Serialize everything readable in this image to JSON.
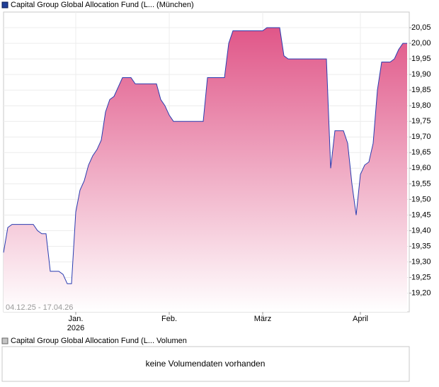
{
  "chart_data": {
    "type": "line",
    "date_range": "04.12.25 - 17.04.26",
    "categories": [
      null,
      null,
      null,
      null,
      null,
      null,
      null,
      null,
      null,
      null,
      null,
      null,
      null,
      null,
      null,
      null,
      null,
      "Jan.",
      null,
      null,
      null,
      null,
      null,
      null,
      null,
      null,
      null,
      null,
      null,
      null,
      null,
      null,
      null,
      null,
      null,
      null,
      null,
      null,
      null,
      "Feb.",
      null,
      null,
      null,
      null,
      null,
      null,
      null,
      null,
      null,
      null,
      null,
      null,
      null,
      null,
      null,
      null,
      null,
      null,
      null,
      null,
      null,
      "März",
      null,
      null,
      null,
      null,
      null,
      null,
      null,
      null,
      null,
      null,
      null,
      null,
      null,
      null,
      null,
      null,
      null,
      null,
      null,
      null,
      null,
      null,
      "April",
      null,
      null,
      null,
      null,
      null,
      null,
      null,
      null,
      null,
      null,
      null
    ],
    "year_label": "2026",
    "series": [
      {
        "name": "Capital Group Global Allocation Fund (L... (München)",
        "color": "#2a3cb0",
        "fill_top": "#e05688",
        "values": [
          19.33,
          19.41,
          19.42,
          19.42,
          19.42,
          19.42,
          19.42,
          19.42,
          19.4,
          19.39,
          19.39,
          19.27,
          19.27,
          19.27,
          19.26,
          19.23,
          19.23,
          19.46,
          19.53,
          19.56,
          19.61,
          19.64,
          19.66,
          19.69,
          19.78,
          19.82,
          19.83,
          19.86,
          19.89,
          19.89,
          19.89,
          19.87,
          19.87,
          19.87,
          19.87,
          19.87,
          19.87,
          19.82,
          19.8,
          19.77,
          19.75,
          19.75,
          19.75,
          19.75,
          19.75,
          19.75,
          19.75,
          19.75,
          19.89,
          19.89,
          19.89,
          19.89,
          19.89,
          20.0,
          20.04,
          20.04,
          20.04,
          20.04,
          20.04,
          20.04,
          20.04,
          20.04,
          20.05,
          20.05,
          20.05,
          20.05,
          19.96,
          19.95,
          19.95,
          19.95,
          19.95,
          19.95,
          19.95,
          19.95,
          19.95,
          19.95,
          19.95,
          19.6,
          19.72,
          19.72,
          19.72,
          19.68,
          19.55,
          19.45,
          19.58,
          19.61,
          19.62,
          19.68,
          19.85,
          19.94,
          19.94,
          19.94,
          19.95,
          19.98,
          20.0,
          20.0
        ]
      }
    ],
    "ylim": [
      19.14,
      20.1
    ],
    "yticks": [
      {
        "value": 19.2,
        "label": "19,20"
      },
      {
        "value": 19.25,
        "label": "19,25"
      },
      {
        "value": 19.3,
        "label": "19,30"
      },
      {
        "value": 19.35,
        "label": "19,35"
      },
      {
        "value": 19.4,
        "label": "19,40"
      },
      {
        "value": 19.45,
        "label": "19,45"
      },
      {
        "value": 19.5,
        "label": "19,50"
      },
      {
        "value": 19.55,
        "label": "19,55"
      },
      {
        "value": 19.6,
        "label": "19,60"
      },
      {
        "value": 19.65,
        "label": "19,65"
      },
      {
        "value": 19.7,
        "label": "19,70"
      },
      {
        "value": 19.75,
        "label": "19,75"
      },
      {
        "value": 19.8,
        "label": "19,80"
      },
      {
        "value": 19.85,
        "label": "19,85"
      },
      {
        "value": 19.9,
        "label": "19,90"
      },
      {
        "value": 19.95,
        "label": "19,95"
      },
      {
        "value": 20.0,
        "label": "20,00"
      },
      {
        "value": 20.05,
        "label": "20,05"
      }
    ],
    "grid": true
  },
  "volume_panel": {
    "legend": "Capital Group Global Allocation Fund (L... Volumen",
    "message": "keine Volumendaten vorhanden"
  }
}
